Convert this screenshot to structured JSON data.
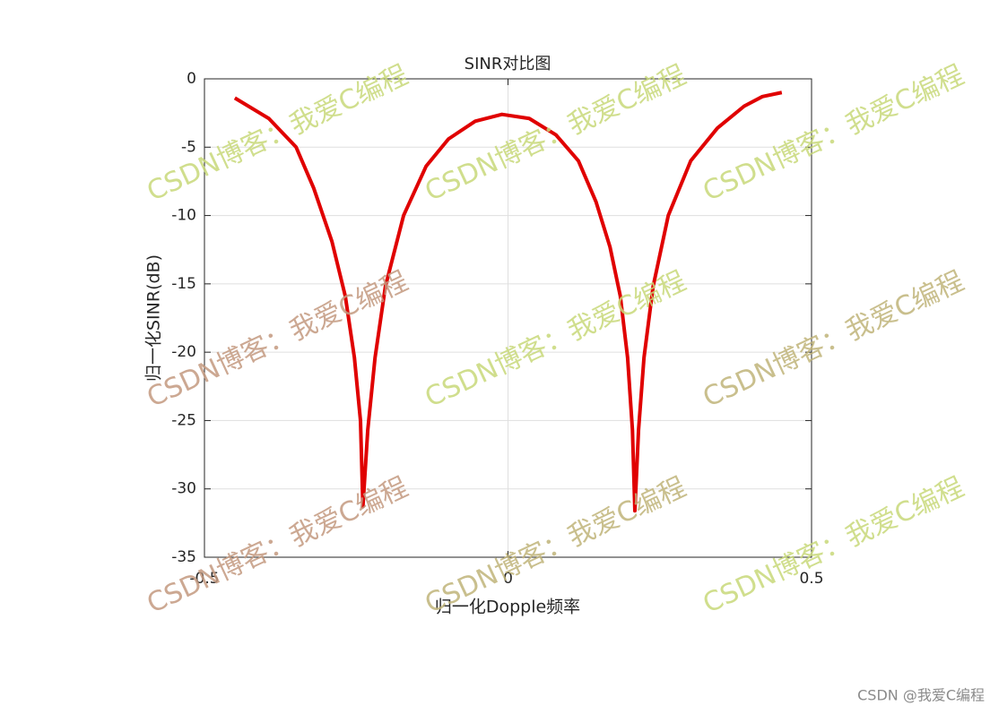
{
  "chart_data": {
    "type": "line",
    "title": "SINR对比图",
    "xlabel": "归一化Dopple频率",
    "ylabel": "归一化SINR(dB)",
    "x": [
      -0.45,
      -0.394,
      -0.349,
      -0.32,
      -0.29,
      -0.268,
      -0.253,
      -0.243,
      -0.239,
      -0.231,
      -0.219,
      -0.202,
      -0.172,
      -0.135,
      -0.098,
      -0.054,
      -0.01,
      0.035,
      0.079,
      0.116,
      0.145,
      0.168,
      0.185,
      0.197,
      0.205,
      0.209,
      0.215,
      0.224,
      0.239,
      0.264,
      0.301,
      0.345,
      0.389,
      0.419,
      0.451
    ],
    "values": [
      -1.4,
      -2.9,
      -5.0,
      -8.0,
      -11.9,
      -15.9,
      -20.4,
      -25.0,
      -31.3,
      -25.7,
      -20.4,
      -15.2,
      -10.0,
      -6.4,
      -4.4,
      -3.1,
      -2.6,
      -2.9,
      -4.1,
      -6.0,
      -9.0,
      -12.3,
      -15.9,
      -20.4,
      -25.7,
      -31.6,
      -25.7,
      -20.4,
      -15.2,
      -10.0,
      -6.0,
      -3.6,
      -2.0,
      -1.3,
      -1.0
    ],
    "color": "#e00000",
    "xlim": [
      -0.5,
      0.5
    ],
    "xticks": [
      -0.5,
      0,
      0.5
    ],
    "ylim": [
      -35,
      0
    ],
    "yticks": [
      -35,
      -30,
      -25,
      -20,
      -15,
      -10,
      -5,
      0
    ],
    "grid": true
  },
  "watermark": "CSDN博客：我爱C编程",
  "footer": "CSDN @我爱C编程"
}
